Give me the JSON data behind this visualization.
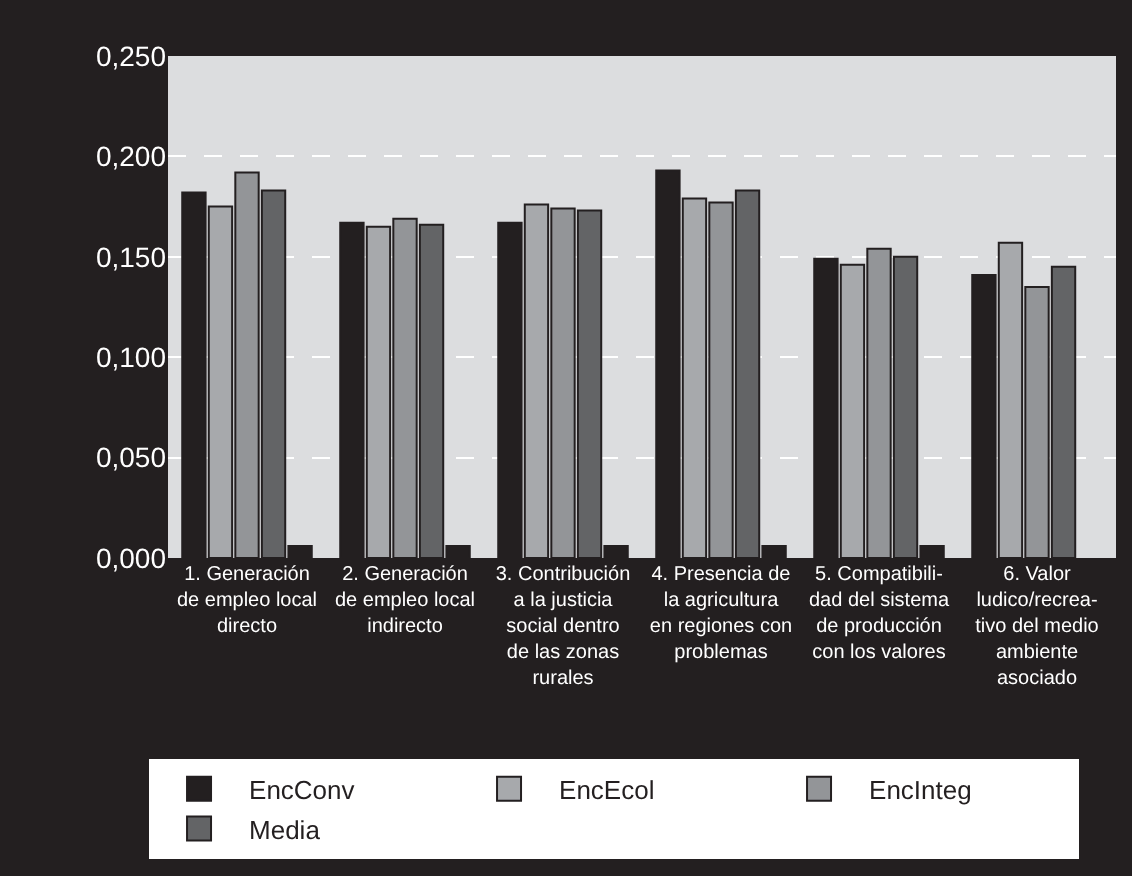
{
  "chart_data": {
    "type": "bar",
    "categories": [
      "1. Generación de empleo local directo",
      "2. Generación de empleo local indirecto",
      "3. Contribución a la justicia social dentro de las zonas rurales",
      "4. Presencia de la agricultura en regiones con problemas",
      "5. Compatibili-dad del sistema de producción con los valores",
      "6. Valor ludico/recrea-tivo del medio ambiente asociado"
    ],
    "series": [
      {
        "name": "EncConv",
        "color": "#231f20",
        "values": [
          0.182,
          0.167,
          0.167,
          0.193,
          0.149,
          0.141
        ]
      },
      {
        "name": "EncEcol",
        "color": "#a7a9ac",
        "values": [
          0.175,
          0.165,
          0.176,
          0.179,
          0.146,
          0.157
        ]
      },
      {
        "name": "EncInteg",
        "color": "#939598",
        "values": [
          0.192,
          0.169,
          0.174,
          0.177,
          0.154,
          0.135
        ]
      },
      {
        "name": "Media",
        "color": "#636466",
        "values": [
          0.183,
          0.166,
          0.173,
          0.183,
          0.15,
          0.145
        ]
      },
      {
        "color": "#231f20",
        "values": [
          0.006,
          0.006,
          0.006,
          0.006,
          0.006,
          null
        ]
      }
    ],
    "ylim": [
      0,
      0.25
    ],
    "yticks": [
      {
        "value": 0,
        "label": "0,000"
      },
      {
        "value": 0.05,
        "label": "0,050"
      },
      {
        "value": 0.1,
        "label": "0,100"
      },
      {
        "value": 0.15,
        "label": "0,150"
      },
      {
        "value": 0.2,
        "label": "0,200"
      },
      {
        "value": 0.25,
        "label": "0,250"
      }
    ],
    "grid": "y",
    "legend": "bottom"
  }
}
